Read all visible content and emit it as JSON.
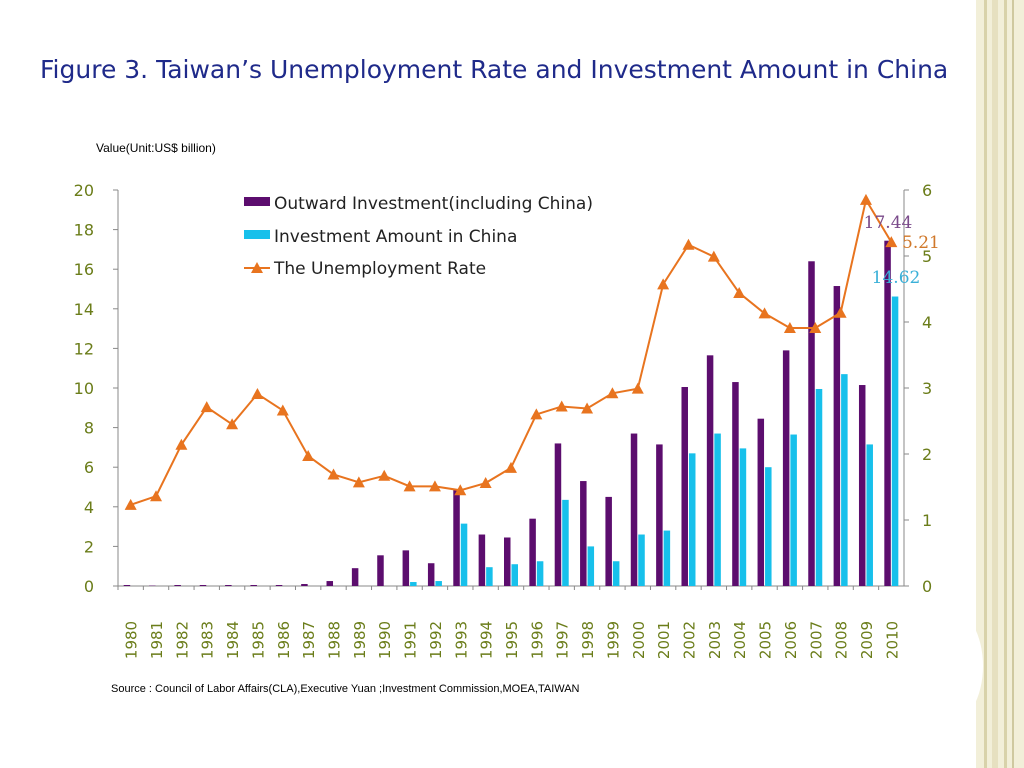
{
  "page": {
    "title": "Figure 3. Taiwan’s Unemployment Rate and Investment Amount in China",
    "units_label": "Value(Unit:US$ billion)",
    "source": "Source : Council of Labor Affairs(CLA),Executive Yuan ;Investment Commission,MOEA,TAIWAN"
  },
  "colors": {
    "outward": "#5c0d6e",
    "china": "#17c0eb",
    "unemployment": "#e8741f",
    "axis_text": "#6b7d1a",
    "title": "#1f2a8a"
  },
  "chart_data": {
    "type": "bar",
    "categories": [
      "1980",
      "1981",
      "1982",
      "1983",
      "1984",
      "1985",
      "1986",
      "1987",
      "1988",
      "1989",
      "1990",
      "1991",
      "1992",
      "1993",
      "1994",
      "1995",
      "1996",
      "1997",
      "1998",
      "1999",
      "2000",
      "2001",
      "2002",
      "2003",
      "2004",
      "2005",
      "2006",
      "2007",
      "2008",
      "2009",
      "2010"
    ],
    "series": [
      {
        "name": "Outward Investment(including China)",
        "type": "bar",
        "axis": "left",
        "values": [
          0.05,
          0.02,
          0.05,
          0.05,
          0.05,
          0.05,
          0.05,
          0.1,
          0.25,
          0.9,
          1.55,
          1.8,
          1.15,
          4.85,
          2.6,
          2.45,
          3.4,
          7.2,
          5.3,
          4.5,
          7.7,
          7.15,
          10.05,
          11.65,
          10.3,
          8.45,
          11.9,
          16.4,
          15.15,
          10.15,
          17.44
        ]
      },
      {
        "name": "Investment Amount in China",
        "type": "bar",
        "axis": "left",
        "values": [
          0,
          0,
          0,
          0,
          0,
          0,
          0,
          0,
          0,
          0,
          0,
          0.2,
          0.25,
          3.15,
          0.95,
          1.1,
          1.25,
          4.35,
          2.0,
          1.25,
          2.6,
          2.8,
          6.7,
          7.7,
          6.95,
          6.0,
          7.65,
          9.95,
          10.7,
          7.15,
          14.62
        ]
      },
      {
        "name": "The Unemployment Rate",
        "type": "line",
        "axis": "right",
        "values": [
          1.23,
          1.36,
          2.14,
          2.71,
          2.45,
          2.91,
          2.66,
          1.97,
          1.69,
          1.57,
          1.67,
          1.51,
          1.51,
          1.45,
          1.56,
          1.79,
          2.6,
          2.72,
          2.69,
          2.92,
          2.99,
          4.57,
          5.17,
          4.99,
          4.44,
          4.13,
          3.91,
          3.91,
          4.14,
          5.85,
          5.21
        ]
      }
    ],
    "y_left": {
      "min": 0,
      "max": 20,
      "ticks": [
        "0",
        "2",
        "4",
        "6",
        "8",
        "10",
        "12",
        "14",
        "16",
        "18",
        "20"
      ]
    },
    "y_right": {
      "min": 0,
      "max": 6,
      "ticks": [
        "0",
        "1",
        "2",
        "3",
        "4",
        "5",
        "6"
      ]
    },
    "annotations": [
      {
        "text": "17.44",
        "series": "Outward Investment(including China)",
        "category": "2010"
      },
      {
        "text": "14.62",
        "series": "Investment Amount in China",
        "category": "2010"
      },
      {
        "text": "5.21",
        "series": "The Unemployment Rate",
        "category": "2010"
      }
    ],
    "legend": "top-center",
    "grid": false
  }
}
